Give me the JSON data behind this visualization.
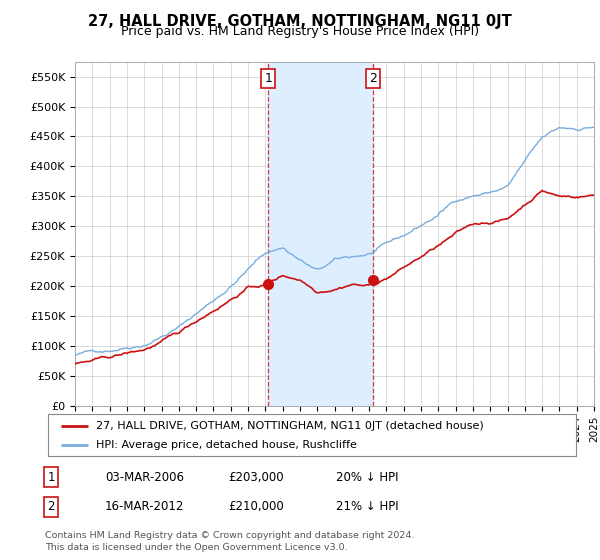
{
  "title": "27, HALL DRIVE, GOTHAM, NOTTINGHAM, NG11 0JT",
  "subtitle": "Price paid vs. HM Land Registry's House Price Index (HPI)",
  "legend_line1": "27, HALL DRIVE, GOTHAM, NOTTINGHAM, NG11 0JT (detached house)",
  "legend_line2": "HPI: Average price, detached house, Rushcliffe",
  "table_row1": [
    "1",
    "03-MAR-2006",
    "£203,000",
    "20% ↓ HPI"
  ],
  "table_row2": [
    "2",
    "16-MAR-2012",
    "£210,000",
    "21% ↓ HPI"
  ],
  "footnote1": "Contains HM Land Registry data © Crown copyright and database right 2024.",
  "footnote2": "This data is licensed under the Open Government Licence v3.0.",
  "hpi_color": "#7aaddc",
  "price_color": "#cc1111",
  "marker_color": "#cc1111",
  "background_color": "#ffffff",
  "grid_color": "#cccccc",
  "shade_color": "#ddeeff",
  "ylim": [
    0,
    575000
  ],
  "yticks": [
    0,
    50000,
    100000,
    150000,
    200000,
    250000,
    300000,
    350000,
    400000,
    450000,
    500000,
    550000
  ],
  "ytick_labels": [
    "£0",
    "£50K",
    "£100K",
    "£150K",
    "£200K",
    "£250K",
    "£300K",
    "£350K",
    "£400K",
    "£450K",
    "£500K",
    "£550K"
  ],
  "xstart_year": 1995,
  "xend_year": 2025,
  "point1_year": 2006.17,
  "point1_value": 203000,
  "point2_year": 2012.21,
  "point2_value": 210000,
  "dashed_line1_year": 2006.17,
  "dashed_line2_year": 2012.21
}
